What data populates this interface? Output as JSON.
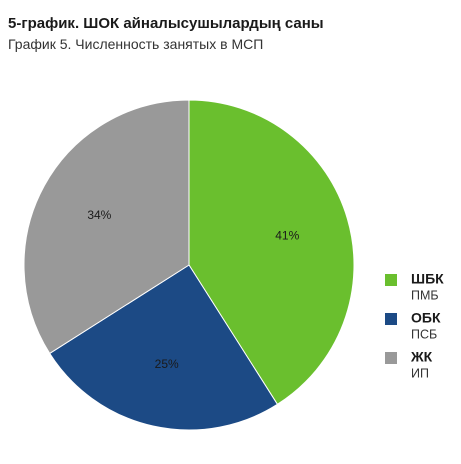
{
  "chart_data": {
    "type": "pie",
    "title": "5-график. ШОК айналысушылардың саны",
    "subtitle": "График 5. Численность занятых в МСП",
    "categories": [
      "ШБК",
      "ОБК",
      "ЖК"
    ],
    "category_sublabels": [
      "ПМБ",
      "ПСБ",
      "ИП"
    ],
    "values": [
      41,
      25,
      34
    ],
    "value_labels": [
      "41%",
      "25%",
      "34%"
    ],
    "colors": [
      "#6abf2e",
      "#1c4a85",
      "#999999"
    ],
    "legend": "right"
  }
}
